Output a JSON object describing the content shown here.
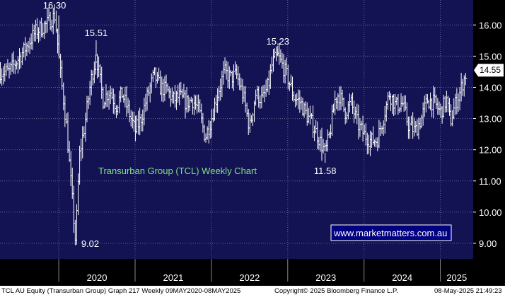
{
  "chart_data": {
    "type": "ohlc",
    "title": "Transurban Group (TCL) Weekly Chart",
    "watermark": "www.marketmatters.com.au",
    "ylim": [
      8.5,
      16.8
    ],
    "yticks": [
      "16.00",
      "15.00",
      "14.00",
      "13.00",
      "12.00",
      "11.00",
      "10.00",
      "9.00"
    ],
    "xticks": [
      "2020",
      "2021",
      "2022",
      "2023",
      "2024",
      "2025"
    ],
    "x_range": [
      2019.23,
      2025.43
    ],
    "last_price": "14.55",
    "last_value": 14.55,
    "annotations": [
      {
        "text": "16.30",
        "x": 2020.0,
        "y": 16.3
      },
      {
        "text": "15.51",
        "x": 2020.49,
        "y": 15.51
      },
      {
        "text": "9.02",
        "x": 2020.22,
        "y": 9.02
      },
      {
        "text": "15.23",
        "x": 2022.87,
        "y": 15.23
      },
      {
        "text": "11.58",
        "x": 2023.49,
        "y": 11.58
      }
    ],
    "anchors": [
      [
        2019.35,
        14.5
      ],
      [
        2019.55,
        15.2
      ],
      [
        2019.7,
        15.8
      ],
      [
        2019.83,
        16.0
      ],
      [
        2019.95,
        16.3
      ],
      [
        2020.02,
        14.5
      ],
      [
        2020.1,
        12.8
      ],
      [
        2020.22,
        9.02
      ],
      [
        2020.27,
        11.8
      ],
      [
        2020.34,
        12.8
      ],
      [
        2020.42,
        14.2
      ],
      [
        2020.49,
        15.0
      ],
      [
        2020.58,
        13.6
      ],
      [
        2020.67,
        13.9
      ],
      [
        2020.75,
        13.4
      ],
      [
        2020.83,
        13.8
      ],
      [
        2020.92,
        13.2
      ],
      [
        2021.0,
        12.6
      ],
      [
        2021.08,
        13.0
      ],
      [
        2021.17,
        13.8
      ],
      [
        2021.25,
        14.4
      ],
      [
        2021.33,
        14.0
      ],
      [
        2021.42,
        13.9
      ],
      [
        2021.5,
        13.6
      ],
      [
        2021.58,
        13.7
      ],
      [
        2021.67,
        13.5
      ],
      [
        2021.75,
        13.6
      ],
      [
        2021.83,
        13.3
      ],
      [
        2021.92,
        12.4
      ],
      [
        2022.0,
        13.0
      ],
      [
        2022.08,
        13.8
      ],
      [
        2022.17,
        14.5
      ],
      [
        2022.25,
        14.3
      ],
      [
        2022.33,
        14.4
      ],
      [
        2022.42,
        13.7
      ],
      [
        2022.5,
        12.7
      ],
      [
        2022.58,
        13.8
      ],
      [
        2022.67,
        13.6
      ],
      [
        2022.75,
        14.1
      ],
      [
        2022.8,
        14.8
      ],
      [
        2022.87,
        15.0
      ],
      [
        2022.95,
        14.6
      ],
      [
        2023.0,
        14.3
      ],
      [
        2023.08,
        13.7
      ],
      [
        2023.17,
        13.5
      ],
      [
        2023.25,
        13.1
      ],
      [
        2023.33,
        12.8
      ],
      [
        2023.42,
        12.3
      ],
      [
        2023.49,
        11.9
      ],
      [
        2023.55,
        12.5
      ],
      [
        2023.62,
        13.6
      ],
      [
        2023.67,
        13.8
      ],
      [
        2023.75,
        13.2
      ],
      [
        2023.83,
        13.5
      ],
      [
        2023.92,
        12.8
      ],
      [
        2024.0,
        12.5
      ],
      [
        2024.08,
        12.3
      ],
      [
        2024.17,
        12.3
      ],
      [
        2024.25,
        13.0
      ],
      [
        2024.33,
        13.8
      ],
      [
        2024.42,
        13.4
      ],
      [
        2024.5,
        13.5
      ],
      [
        2024.58,
        12.8
      ],
      [
        2024.67,
        12.6
      ],
      [
        2024.75,
        13.0
      ],
      [
        2024.83,
        13.6
      ],
      [
        2024.92,
        13.5
      ],
      [
        2025.0,
        13.2
      ],
      [
        2025.08,
        13.6
      ],
      [
        2025.13,
        12.9
      ],
      [
        2025.2,
        13.5
      ],
      [
        2025.25,
        13.8
      ],
      [
        2025.3,
        14.2
      ],
      [
        2025.35,
        14.55
      ]
    ],
    "footer": {
      "left": "TCL AU Equity (Transurban Group) Graph 217  Weekly 09MAY2020-08MAY2025",
      "center": "Copyright© 2025 Bloomberg Finance L.P.",
      "right": "08-May-2025 21:49:23"
    },
    "colors": {
      "panel": "#131354",
      "grid": "#5f6290",
      "bars": "#ffffff",
      "title": "#7fe07f",
      "last_box": "#ffffff",
      "footer_bg": "#ffffff"
    }
  }
}
